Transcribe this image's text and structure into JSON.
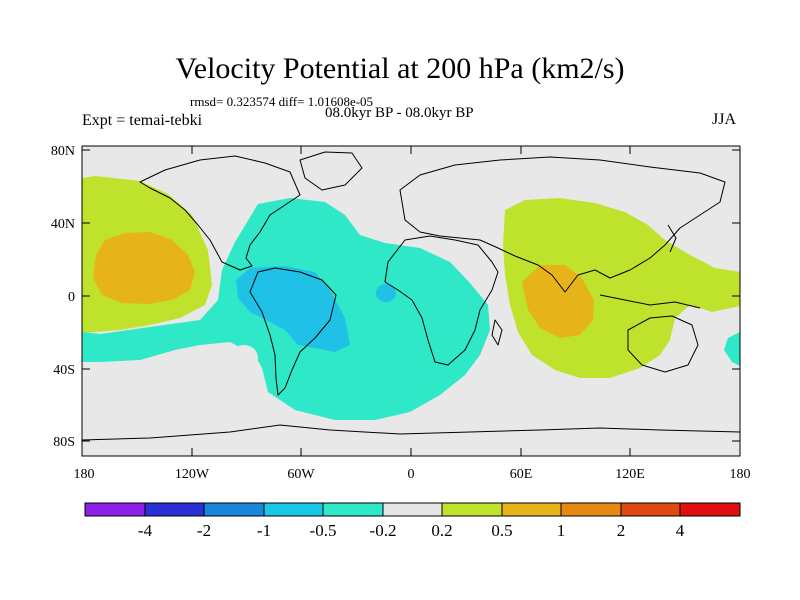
{
  "figure": {
    "title": "Velocity Potential at 200 hPa (km2/s)",
    "stats": "rmsd= 0.323574 diff= 1.01608e-05",
    "period": "08.0kyr BP - 08.0kyr BP",
    "experiment": "Expt = temai-tebki",
    "season": "JJA"
  },
  "map": {
    "lat_labels": [
      "80N",
      "40N",
      "0",
      "40S",
      "80S"
    ],
    "lon_labels": [
      "180",
      "120W",
      "60W",
      "0",
      "60E",
      "120E",
      "180"
    ],
    "colors": {
      "background": "#e8e8e8",
      "coast": "#000000"
    }
  },
  "colorbar": {
    "labels": [
      "-4",
      "-2",
      "-1",
      "-0.5",
      "-0.2",
      "0.2",
      "0.5",
      "1",
      "2",
      "4"
    ],
    "colors": [
      "#8a21e6",
      "#2b2fd6",
      "#1a86dc",
      "#18c6e8",
      "#2ee8c8",
      "#e6e6e6",
      "#bfe32c",
      "#e6b418",
      "#e48a14",
      "#e04a10",
      "#e01010"
    ]
  }
}
